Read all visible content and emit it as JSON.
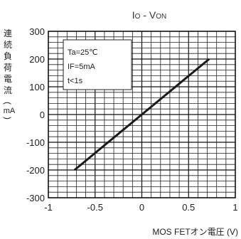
{
  "chart_data": {
    "type": "line",
    "title": "IO - VON",
    "title_parts": {
      "main1": "I",
      "sub1": "O",
      "sep": " - V",
      "sub2": "ON"
    },
    "xlabel": "MOS FETオン電圧 (V)",
    "ylabel": "連続負荷電流(mA)",
    "ylabel_chars": [
      "連",
      "続",
      "負",
      "荷",
      "電",
      "流",
      "(",
      "mA",
      ")"
    ],
    "xlim": [
      -1,
      1
    ],
    "ylim": [
      -300,
      300
    ],
    "x_ticks": [
      -1,
      -0.5,
      0,
      0.5,
      1
    ],
    "x_tick_labels": [
      "-1",
      "-0.5",
      "0",
      "0.5",
      "1"
    ],
    "y_ticks": [
      300,
      200,
      100,
      0,
      -100,
      -200,
      -300
    ],
    "y_tick_labels": [
      "300",
      "200",
      "100",
      "0",
      "-100",
      "-200",
      "-300"
    ],
    "grid": true,
    "legend_placement": "top-left",
    "annotations": [
      "Ta=25℃",
      "IF=5mA",
      "t<1s"
    ],
    "series": [
      {
        "x": [
          -0.72,
          0.72
        ],
        "y": [
          -200,
          200
        ]
      }
    ]
  }
}
